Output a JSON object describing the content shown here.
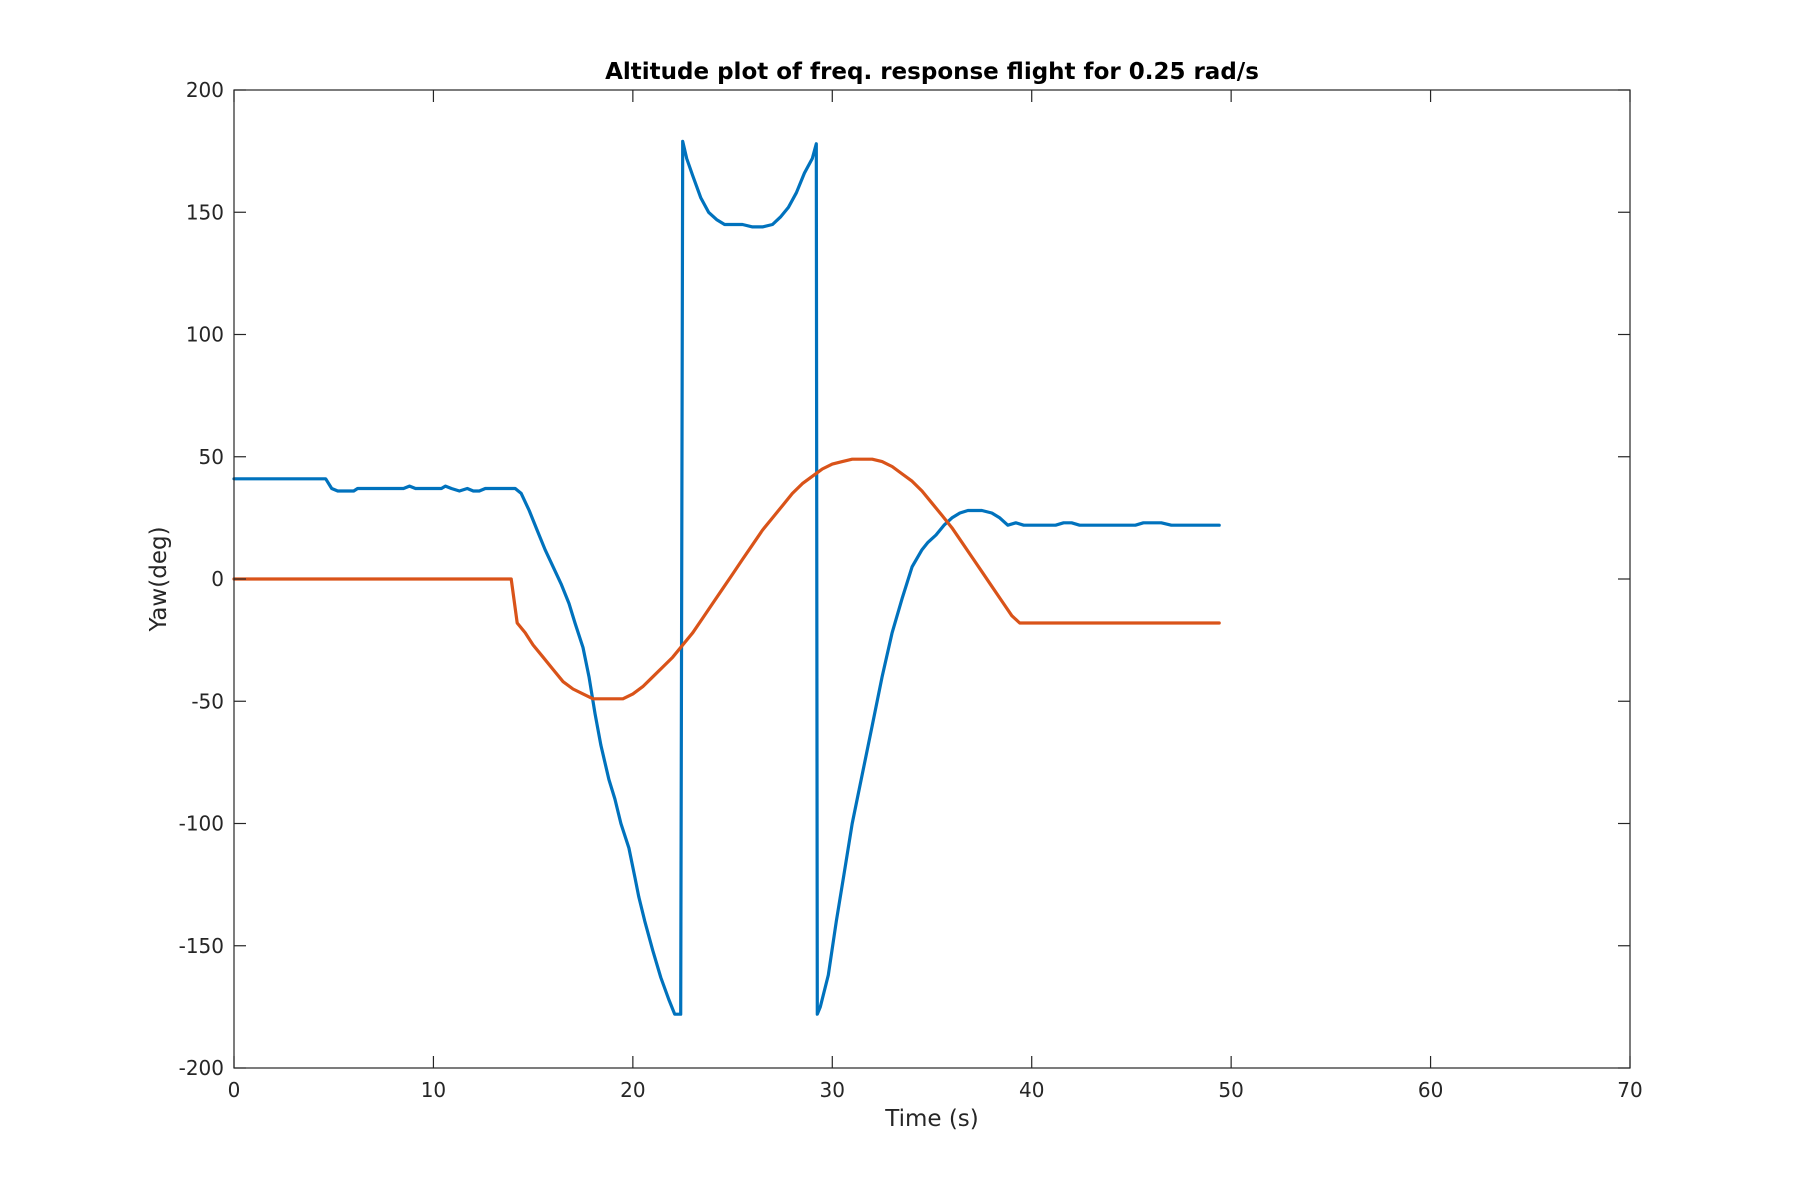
{
  "chart_data": {
    "type": "line",
    "title": "Altitude plot of freq. response flight for 0.25 rad/s",
    "xlabel": "Time (s)",
    "ylabel": "Yaw(deg)",
    "xlim": [
      0,
      70
    ],
    "ylim": [
      -200,
      200
    ],
    "xticks": [
      0,
      10,
      20,
      30,
      40,
      50,
      60,
      70
    ],
    "yticks": [
      -200,
      -150,
      -100,
      -50,
      0,
      50,
      100,
      150,
      200
    ],
    "xtick_labels": [
      "0",
      "10",
      "20",
      "30",
      "40",
      "50",
      "60",
      "70"
    ],
    "ytick_labels": [
      "-200",
      "-150",
      "-100",
      "-50",
      "0",
      "50",
      "100",
      "150",
      "200"
    ],
    "grid": false,
    "series": [
      {
        "color": "#0072BD",
        "x": [
          0,
          4.6,
          4.9,
          5.2,
          6.0,
          6.2,
          8.5,
          8.8,
          9.1,
          10.4,
          10.6,
          10.9,
          11.3,
          11.7,
          12.0,
          12.3,
          12.6,
          14.1,
          14.4,
          14.8,
          15.2,
          15.6,
          16.0,
          16.4,
          16.8,
          17.1,
          17.5,
          17.8,
          18.1,
          18.4,
          18.6,
          18.8,
          19.1,
          19.4,
          19.8,
          20.1,
          20.3,
          20.6,
          21.0,
          21.4,
          21.8,
          22.1,
          22.4,
          22.5,
          22.7,
          23.0,
          23.4,
          23.8,
          24.2,
          24.6,
          25.0,
          25.5,
          26.0,
          26.5,
          27.0,
          27.4,
          27.8,
          28.2,
          28.6,
          29.0,
          29.2,
          29.25,
          29.4,
          29.8,
          30.2,
          30.6,
          31.0,
          31.5,
          32.0,
          32.5,
          33.0,
          33.5,
          34.0,
          34.5,
          34.8,
          35.2,
          35.6,
          36.0,
          36.4,
          36.8,
          37.2,
          37.5,
          38.0,
          38.4,
          38.8,
          39.2,
          39.6,
          40.0,
          40.4,
          40.8,
          41.2,
          41.6,
          42.0,
          42.4,
          42.8,
          43.2,
          43.6,
          44.0,
          44.4,
          44.8,
          45.2,
          45.6,
          46.0,
          46.5,
          47.0,
          47.5,
          48.0,
          48.5,
          49.0,
          49.4
        ],
        "y": [
          41,
          41,
          37,
          36,
          36,
          37,
          37,
          38,
          37,
          37,
          38,
          37,
          36,
          37,
          36,
          36,
          37,
          37,
          35,
          28,
          20,
          12,
          5,
          -2,
          -10,
          -18,
          -28,
          -40,
          -55,
          -68,
          -75,
          -82,
          -90,
          -100,
          -110,
          -122,
          -130,
          -140,
          -152,
          -163,
          -172,
          -178,
          -178,
          179,
          172,
          165,
          156,
          150,
          147,
          145,
          145,
          145,
          144,
          144,
          145,
          148,
          152,
          158,
          166,
          172,
          178,
          -178,
          -175,
          -162,
          -140,
          -120,
          -100,
          -80,
          -60,
          -40,
          -22,
          -8,
          5,
          12,
          15,
          18,
          22,
          25,
          27,
          28,
          28,
          28,
          27,
          25,
          22,
          23,
          22,
          22,
          22,
          22,
          22,
          23,
          23,
          22,
          22,
          22,
          22,
          22,
          22,
          22,
          22,
          23,
          23,
          23,
          22,
          22,
          22,
          22,
          22,
          22
        ]
      },
      {
        "color": "#D95319",
        "x": [
          0,
          5,
          10,
          13.9,
          14.2,
          14.6,
          15.0,
          15.5,
          16.0,
          16.5,
          17.0,
          17.5,
          18.0,
          18.5,
          19.0,
          19.5,
          20.0,
          20.5,
          21.0,
          21.5,
          22.0,
          22.5,
          23.0,
          23.5,
          24.0,
          24.5,
          25.0,
          25.5,
          26.0,
          26.5,
          27.0,
          27.5,
          28.0,
          28.5,
          29.0,
          29.5,
          30.0,
          30.5,
          31.0,
          31.5,
          32.0,
          32.5,
          33.0,
          33.5,
          34.0,
          34.5,
          35.0,
          35.5,
          36.0,
          36.5,
          37.0,
          37.5,
          38.0,
          38.5,
          39.0,
          39.4,
          40,
          45,
          49.4
        ],
        "y": [
          0,
          0,
          0,
          0,
          -18,
          -22,
          -27,
          -32,
          -37,
          -42,
          -45,
          -47,
          -49,
          -49,
          -49,
          -49,
          -47,
          -44,
          -40,
          -36,
          -32,
          -27,
          -22,
          -16,
          -10,
          -4,
          2,
          8,
          14,
          20,
          25,
          30,
          35,
          39,
          42,
          45,
          47,
          48,
          49,
          49,
          49,
          48,
          46,
          43,
          40,
          36,
          31,
          26,
          21,
          15,
          9,
          3,
          -3,
          -9,
          -15,
          -18,
          -18,
          -18,
          -18
        ]
      }
    ]
  }
}
